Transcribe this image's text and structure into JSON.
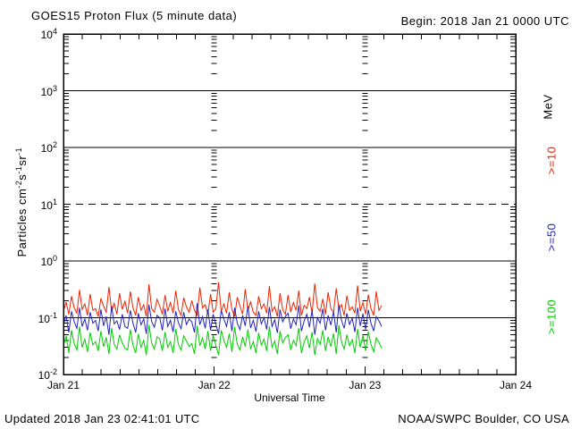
{
  "header": {
    "title": "GOES15 Proton Flux (5 minute data)",
    "begin_label": "Begin: 2018 Jan 21 0000 UTC"
  },
  "footer": {
    "updated": "Updated 2018 Jan 23 02:41:01 UTC",
    "source": "NOAA/SWPC Boulder, CO USA"
  },
  "colors": {
    "frame": "#000000",
    "red_series": "#ee2200",
    "blue_series": "#2222bb",
    "green_series": "#00cc00",
    "background": "#ffffff"
  },
  "yaxis_label_parts": {
    "base": "Particles  cm",
    "sup1": "-2",
    "mid1": "s",
    "sup2": "-1",
    "mid2": "sr",
    "sup3": "-1"
  },
  "legend": {
    "unit_label": "MeV",
    "entry_ge10": ">=10",
    "entry_ge50": ">=50",
    "entry_ge100": ">=100"
  },
  "chart_data": {
    "type": "line",
    "title": "GOES15 Proton Flux (5 minute data)",
    "xlabel": "Universal Time",
    "ylabel": "Particles cm-2 s-1 sr-1",
    "yscale": "log",
    "ylim": [
      0.01,
      10000
    ],
    "y_tick_exponents": [
      4,
      3,
      2,
      1,
      0,
      -1,
      -2
    ],
    "grid_solid_exponents": [
      3,
      2,
      0,
      -1
    ],
    "grid_dashed_exponents": [
      1
    ],
    "x_total_hours": 72,
    "x_tick_labels": [
      "Jan 21",
      "Jan 22",
      "Jan 23",
      "Jan 24"
    ],
    "x_day_boundary_hours": [
      24,
      48
    ],
    "x_minor_tick_hours": 3,
    "legend_position": "right",
    "data_start_hour": 0,
    "data_end_hour": 50.66,
    "series": [
      {
        "name": ">=10",
        "unit": "MeV",
        "color": "#ee2200",
        "values": [
          0.13,
          0.19,
          0.115,
          0.24,
          0.15,
          0.12,
          0.31,
          0.14,
          0.175,
          0.11,
          0.26,
          0.135,
          0.145,
          0.105,
          0.22,
          0.16,
          0.125,
          0.35,
          0.13,
          0.18,
          0.115,
          0.27,
          0.14,
          0.195,
          0.12,
          0.29,
          0.15,
          0.11,
          0.23,
          0.135,
          0.17,
          0.105,
          0.39,
          0.145,
          0.125,
          0.21,
          0.16,
          0.115,
          0.25,
          0.13,
          0.185,
          0.12,
          0.3,
          0.14,
          0.11,
          0.225,
          0.155,
          0.125,
          0.2,
          0.135,
          0.11,
          0.34,
          0.15,
          0.17,
          0.115,
          0.26,
          0.125,
          0.145,
          0.42,
          0.13,
          0.175,
          0.12,
          0.28,
          0.14,
          0.105,
          0.23,
          0.16,
          0.115,
          0.32,
          0.135,
          0.19,
          0.125,
          0.11,
          0.24,
          0.145,
          0.175,
          0.12,
          0.36,
          0.13,
          0.155,
          0.105,
          0.27,
          0.14,
          0.115,
          0.25,
          0.125,
          0.185,
          0.135,
          0.3,
          0.11,
          0.165,
          0.145,
          0.23,
          0.12,
          0.4,
          0.15,
          0.13,
          0.215,
          0.115,
          0.28,
          0.145,
          0.125,
          0.33,
          0.14,
          0.17,
          0.11,
          0.245,
          0.135,
          0.155,
          0.12,
          0.37,
          0.13,
          0.185,
          0.115,
          0.255,
          0.145,
          0.11,
          0.29,
          0.135,
          0.165
        ]
      },
      {
        "name": ">=50",
        "unit": "MeV",
        "color": "#2222bb",
        "values": [
          0.075,
          0.11,
          0.055,
          0.13,
          0.085,
          0.065,
          0.15,
          0.07,
          0.095,
          0.06,
          0.125,
          0.08,
          0.09,
          0.058,
          0.14,
          0.072,
          0.105,
          0.05,
          0.16,
          0.078,
          0.088,
          0.062,
          0.115,
          0.07,
          0.065,
          0.135,
          0.08,
          0.055,
          0.12,
          0.075,
          0.095,
          0.052,
          0.17,
          0.085,
          0.068,
          0.11,
          0.1,
          0.06,
          0.145,
          0.07,
          0.09,
          0.056,
          0.13,
          0.082,
          0.064,
          0.125,
          0.076,
          0.095,
          0.085,
          0.055,
          0.18,
          0.075,
          0.105,
          0.065,
          0.14,
          0.06,
          0.115,
          0.078,
          0.052,
          0.135,
          0.095,
          0.07,
          0.125,
          0.058,
          0.15,
          0.08,
          0.062,
          0.11,
          0.072,
          0.16,
          0.066,
          0.09,
          0.057,
          0.13,
          0.078,
          0.1,
          0.062,
          0.155,
          0.07,
          0.092,
          0.054,
          0.14,
          0.085,
          0.105,
          0.12,
          0.064,
          0.095,
          0.075,
          0.165,
          0.058,
          0.088,
          0.115,
          0.068,
          0.135,
          0.05,
          0.1,
          0.08,
          0.145,
          0.06,
          0.11,
          0.074,
          0.128,
          0.055,
          0.17,
          0.09,
          0.065,
          0.12,
          0.076,
          0.098,
          0.056,
          0.15,
          0.072,
          0.118,
          0.062,
          0.138,
          0.08,
          0.058,
          0.105,
          0.088,
          0.07
        ]
      },
      {
        "name": ">=100",
        "unit": "MeV",
        "color": "#00cc00",
        "values": [
          0.032,
          0.048,
          0.024,
          0.06,
          0.035,
          0.027,
          0.07,
          0.03,
          0.042,
          0.025,
          0.055,
          0.033,
          0.038,
          0.026,
          0.058,
          0.031,
          0.045,
          0.023,
          0.066,
          0.034,
          0.028,
          0.05,
          0.036,
          0.029,
          0.027,
          0.062,
          0.033,
          0.024,
          0.052,
          0.03,
          0.04,
          0.022,
          0.075,
          0.036,
          0.028,
          0.046,
          0.042,
          0.026,
          0.056,
          0.03,
          0.038,
          0.024,
          0.064,
          0.034,
          0.027,
          0.048,
          0.039,
          0.031,
          0.035,
          0.023,
          0.072,
          0.032,
          0.044,
          0.028,
          0.058,
          0.026,
          0.049,
          0.033,
          0.022,
          0.06,
          0.04,
          0.03,
          0.052,
          0.025,
          0.068,
          0.034,
          0.027,
          0.046,
          0.031,
          0.062,
          0.028,
          0.038,
          0.024,
          0.054,
          0.033,
          0.042,
          0.026,
          0.07,
          0.03,
          0.039,
          0.023,
          0.058,
          0.036,
          0.045,
          0.05,
          0.027,
          0.04,
          0.032,
          0.066,
          0.024,
          0.037,
          0.048,
          0.029,
          0.056,
          0.022,
          0.043,
          0.034,
          0.06,
          0.026,
          0.046,
          0.031,
          0.053,
          0.023,
          0.074,
          0.038,
          0.028,
          0.05,
          0.032,
          0.041,
          0.024,
          0.063,
          0.03,
          0.049,
          0.026,
          0.057,
          0.034,
          0.025,
          0.044,
          0.037,
          0.029
        ]
      }
    ]
  }
}
